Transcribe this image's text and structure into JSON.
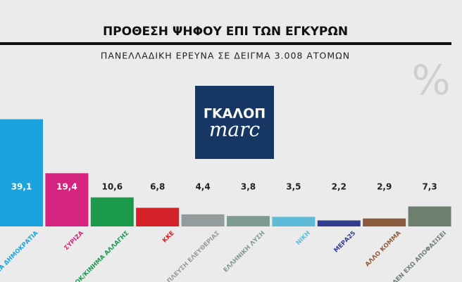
{
  "chart_data": {
    "type": "bar",
    "title": "ΠΡΟΘΕΣΗ ΨΗΦΟΥ ΕΠΙ ΤΩΝ ΕΓΚΥΡΩΝ",
    "subtitle": "ΠΑΝΕΛΛΑΔΙΚΗ ΕΡΕΥΝΑ ΣΕ ΔΕΙΓΜΑ 3.008 ΑΤΟΜΩΝ",
    "unit_mark": "%",
    "logo_text": [
      "ΓΚΑΛΟΠ",
      "marc"
    ],
    "categories": [
      "ΝΕΑ ΔΗΜΟΚΡΑΤΙΑ",
      "ΣΥΡΙΖΑ",
      "ΠΑΣΟΚ/ΚΙΝΗΜΑ ΑΛΛΑΓΗΣ",
      "ΚΚΕ",
      "ΠΛΕΥΣΗ ΕΛΕΥΘΕΡΙΑΣ",
      "ΕΛΛΗΝΙΚΗ ΛΥΣΗ",
      "ΝΙΚΗ",
      "ΜΕΡΑ25",
      "ΑΛΛΟ ΚΟΜΜΑ",
      "ΔΕΝ ΕΧΩ ΑΠΟΦΑΣΙΣΕΙ"
    ],
    "values": [
      39.1,
      19.4,
      10.6,
      6.8,
      4.4,
      3.8,
      3.5,
      2.2,
      2.9,
      7.3
    ],
    "value_labels": [
      "39,1",
      "19,4",
      "10,6",
      "6,8",
      "4,4",
      "3,8",
      "3,5",
      "2,2",
      "2,9",
      "7,3"
    ],
    "colors": [
      "#1ba3dd",
      "#d6237f",
      "#1c9a4c",
      "#d42127",
      "#939c9c",
      "#7e9b90",
      "#5dbbd8",
      "#323d8f",
      "#8c5a3d",
      "#6d8070"
    ],
    "ylim": [
      0,
      40
    ]
  }
}
